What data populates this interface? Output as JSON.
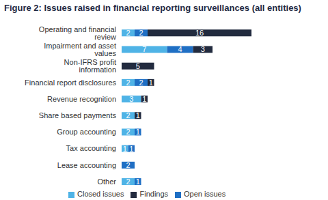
{
  "chart_data": {
    "type": "bar",
    "title": "Figure 2: Issues raised in financial reporting surveillances (all entities)",
    "orientation": "horizontal",
    "stacked": true,
    "data_labels": true,
    "tick_labels": "y",
    "legend": "bottom",
    "categories": [
      "Operating and financial review",
      "Impairment and asset values",
      "Non-IFRS profit information",
      "Financial report disclosures",
      "Revenue recognition",
      "Share based payments",
      "Group accounting",
      "Tax accounting",
      "Lease accounting",
      "Other"
    ],
    "series": [
      {
        "name": "Closed issues",
        "color": "#4fb3e6",
        "values": [
          2,
          7,
          null,
          2,
          3,
          2,
          2,
          1,
          null,
          2
        ]
      },
      {
        "name": "Open issues",
        "color": "#1f6fc4",
        "values": [
          2,
          4,
          null,
          2,
          null,
          null,
          1,
          1,
          2,
          1
        ]
      },
      {
        "name": "Findings",
        "color": "#222b3f",
        "values": [
          16,
          3,
          5,
          1,
          1,
          1,
          null,
          null,
          null,
          null
        ]
      }
    ]
  }
}
